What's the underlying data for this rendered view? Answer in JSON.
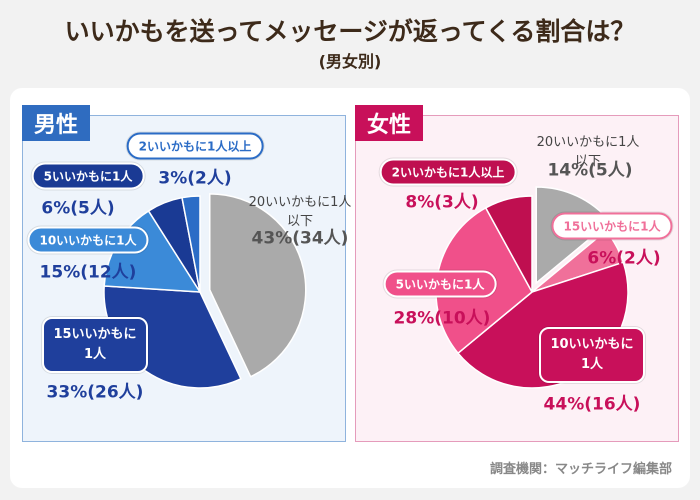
{
  "title": "いいかもを送ってメッセージが返ってくる割合は？",
  "subtitle": "(男女別)",
  "source": "調査機関：マッチライフ編集部",
  "chart_data": [
    {
      "type": "pie",
      "title": "男性",
      "categories": [
        "20いいかもに1人以下",
        "15いいかもに1人",
        "10いいかもに1人",
        "5いいかもに1人",
        "2いいかもに1人以上"
      ],
      "values": [
        43,
        33,
        15,
        6,
        3
      ],
      "value_labels": [
        "43%(34人)",
        "33%(26人)",
        "15%(12人)",
        "6%(5人)",
        "3%(2人)"
      ],
      "colors": [
        "#aaaaaa",
        "#1f3f9c",
        "#3b8ad8",
        "#1a3a94",
        "#2b6cc6"
      ]
    },
    {
      "type": "pie",
      "title": "女性",
      "categories": [
        "20いいかもに1人以下",
        "15いいかもに1人",
        "10いいかもに1人",
        "5いいかもに1人",
        "2いいかもに1人以上"
      ],
      "values": [
        14,
        6,
        44,
        28,
        8
      ],
      "value_labels": [
        "14%(5人)",
        "6%(2人)",
        "44%(16人)",
        "28%(10人)",
        "8%(3人)"
      ],
      "colors": [
        "#aaaaaa",
        "#f0709a",
        "#c8105a",
        "#f0508a",
        "#bf0f50"
      ]
    }
  ]
}
